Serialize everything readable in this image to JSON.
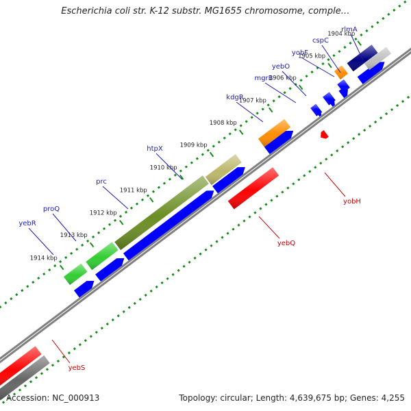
{
  "title": "Escherichia coli str. K-12 substr. MG1655 chromosome, comple…",
  "footer": {
    "accession": "Accession: NC_000913",
    "summary": "Topology: circular; Length: 4,639,675 bp; Genes: 4,255"
  },
  "colors": {
    "forward_label": "#1a1ab4",
    "reverse_label": "#c80000",
    "tick": "#148c14",
    "backbone": "#808080"
  },
  "ticks": [
    {
      "label": "1904 kbp"
    },
    {
      "label": "1905 kbp"
    },
    {
      "label": "1906 kbp"
    },
    {
      "label": "1907 kbp"
    },
    {
      "label": "1908 kbp"
    },
    {
      "label": "1909 kbp"
    },
    {
      "label": "1910 kbp"
    },
    {
      "label": "1911 kbp"
    },
    {
      "label": "1912 kbp"
    },
    {
      "label": "1913 kbp"
    },
    {
      "label": "1914 kbp"
    }
  ],
  "forward_genes": [
    {
      "name": "rlmA",
      "color": "#000080"
    },
    {
      "name": "cspC",
      "color": "#ff8c00"
    },
    {
      "name": "yobF",
      "color": "#0000ff"
    },
    {
      "name": "yebO",
      "color": "#0000ff"
    },
    {
      "name": "mgrB",
      "color": "#0000ff"
    },
    {
      "name": "kdgR",
      "color": "#ff8c00"
    },
    {
      "name": "htpX",
      "color": "#bdb76b"
    },
    {
      "name": "prc",
      "color": "#6b8e23"
    },
    {
      "name": "proQ",
      "color": "#32cd32"
    },
    {
      "name": "yebR",
      "color": "#32cd32"
    }
  ],
  "reverse_genes": [
    {
      "name": "yobH",
      "color": "#ff0000"
    },
    {
      "name": "yebQ",
      "color": "#ff0000"
    },
    {
      "name": "yebS",
      "color": "#ff0000"
    }
  ]
}
